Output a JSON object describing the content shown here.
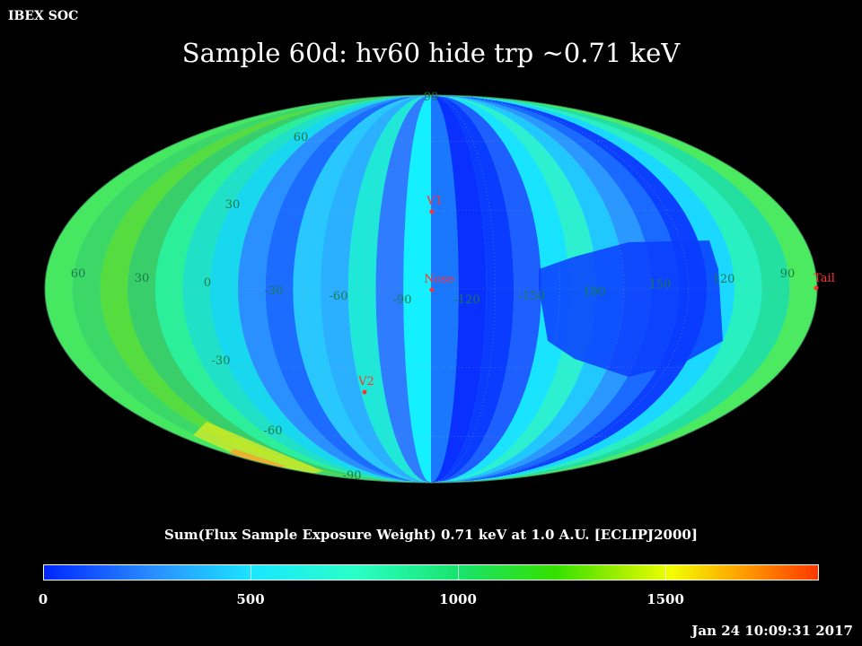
{
  "header": {
    "source": "IBEX SOC",
    "title": "Sample 60d: hv60 hide trp ~0.71 keV"
  },
  "map": {
    "projection": "Mollweide (ecliptic J2000)",
    "meridian_labels": [
      "60",
      "30",
      "0",
      "-30",
      "-60",
      "-90",
      "-120",
      "-150",
      "180",
      "150",
      "120",
      "90"
    ],
    "parallel_labels": [
      "90",
      "60",
      "30",
      "-30",
      "-60",
      "-90"
    ],
    "markers": [
      {
        "label": "V1",
        "color": "#ff3030"
      },
      {
        "label": "Nose",
        "color": "#ff3030"
      },
      {
        "label": "V2",
        "color": "#ff3030"
      },
      {
        "label": "Tail",
        "color": "#ff3030"
      }
    ]
  },
  "colorbar": {
    "title": "Sum(Flux Sample Exposure Weight)  0.71 keV at 1.0 A.U. [ECLIPJ2000]",
    "min": 0,
    "max": 1870,
    "tick_values": [
      0,
      500,
      1000,
      1500
    ],
    "tick_labels": [
      "0",
      "500",
      "1000",
      "1500"
    ],
    "colors": [
      "#0026ff",
      "#1be6ff",
      "#19e36a",
      "#f2ff00",
      "#ff3800"
    ]
  },
  "timestamp": "Jan 24 10:09:31 2017"
}
